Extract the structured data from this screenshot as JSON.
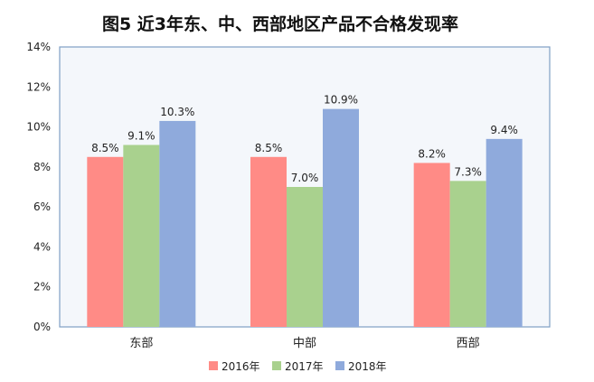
{
  "chart_data": {
    "type": "bar",
    "title": "图5  近3年东、中、西部地区产品不合格发现率",
    "categories": [
      "东部",
      "中部",
      "西部"
    ],
    "series": [
      {
        "name": "2016年",
        "values": [
          8.5,
          8.5,
          8.2
        ],
        "labels": [
          "8.5%",
          "8.5%",
          "8.2%"
        ],
        "color": "#ff8b86"
      },
      {
        "name": "2017年",
        "values": [
          9.1,
          7.0,
          7.3
        ],
        "labels": [
          "9.1%",
          "7.0%",
          "7.3%"
        ],
        "color": "#a9d18e"
      },
      {
        "name": "2018年",
        "values": [
          10.3,
          10.9,
          9.4
        ],
        "labels": [
          "10.3%",
          "10.9%",
          "9.4%"
        ],
        "color": "#8faadc"
      }
    ],
    "ylim": [
      0,
      14
    ],
    "yticks": [
      0,
      2,
      4,
      6,
      8,
      10,
      12,
      14
    ],
    "ytick_labels": [
      "0%",
      "2%",
      "4%",
      "6%",
      "8%",
      "10%",
      "12%",
      "14%"
    ],
    "xlabel": "",
    "ylabel": "",
    "grid": false,
    "legend_position": "bottom",
    "plot_background": "#f4f7fb",
    "plot_border": "#7f9fc4"
  }
}
